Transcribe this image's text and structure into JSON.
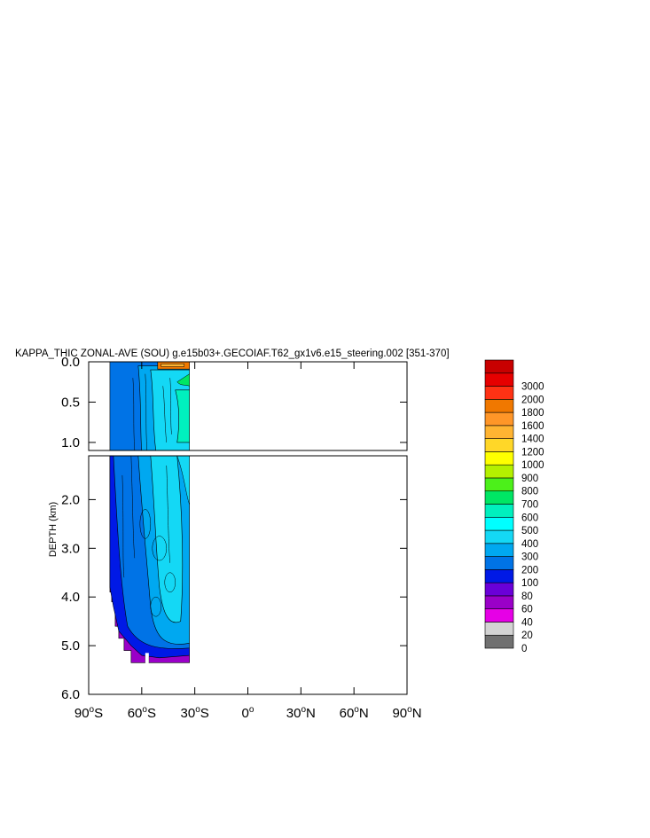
{
  "chart_data": {
    "type": "contour",
    "title": "KAPPA_THIC ZONAL-AVE (SOU) g.e15b03+.GECOIAF.T62_gx1v6.e15_steering.002 [351-370]",
    "ylabel": "DEPTH (km)",
    "xlim": [
      -90,
      90
    ],
    "x_ticks": [
      {
        "value": -90,
        "deg": "90",
        "hemi": "S"
      },
      {
        "value": -60,
        "deg": "60",
        "hemi": "S"
      },
      {
        "value": -30,
        "deg": "30",
        "hemi": "S"
      },
      {
        "value": 0,
        "deg": "0",
        "hemi": ""
      },
      {
        "value": 30,
        "deg": "30",
        "hemi": "N"
      },
      {
        "value": 60,
        "deg": "60",
        "hemi": "N"
      },
      {
        "value": 90,
        "deg": "90",
        "hemi": "N"
      }
    ],
    "upper_panel": {
      "ylim": [
        0.0,
        1.1
      ],
      "y_ticks": [
        "0.0",
        "0.5",
        "1.0"
      ],
      "y_values": [
        0.0,
        0.5,
        1.0
      ]
    },
    "lower_panel": {
      "ylim": [
        1.1,
        6.0
      ],
      "y_ticks": [
        "2.0",
        "3.0",
        "4.0",
        "5.0",
        "6.0"
      ],
      "y_values": [
        2.0,
        3.0,
        4.0,
        5.0,
        6.0
      ]
    },
    "data_extent": {
      "lat_min": -78,
      "lat_max": -33,
      "max_depth_km": 5.35
    },
    "colorbar": {
      "levels": [
        "0",
        "20",
        "40",
        "60",
        "80",
        "100",
        "200",
        "300",
        "400",
        "500",
        "600",
        "700",
        "800",
        "900",
        "1000",
        "1200",
        "1400",
        "1600",
        "1800",
        "2000",
        "3000"
      ],
      "colors": [
        "#707070",
        "#d3d3d3",
        "#e600e6",
        "#9a00c8",
        "#6a00d8",
        "#0019e6",
        "#0073e6",
        "#00a8f0",
        "#14d8f5",
        "#00ffff",
        "#00f0be",
        "#00e664",
        "#4cf01a",
        "#b4f000",
        "#ffff00",
        "#ffd728",
        "#ffb432",
        "#ff9628",
        "#f07800",
        "#ff3214",
        "#e60000",
        "#c80000"
      ]
    },
    "field_colors": {
      "deep_edge": "#9a00c8",
      "deep_blue": "#0019e6",
      "interior": "#0073e6",
      "mid": "#00a8f0",
      "core": "#14d8f5",
      "upper_core": "#00f0be",
      "surface_hot": "#f07800",
      "surface_warm": "#ffb432",
      "surface_green": "#00e664"
    }
  }
}
